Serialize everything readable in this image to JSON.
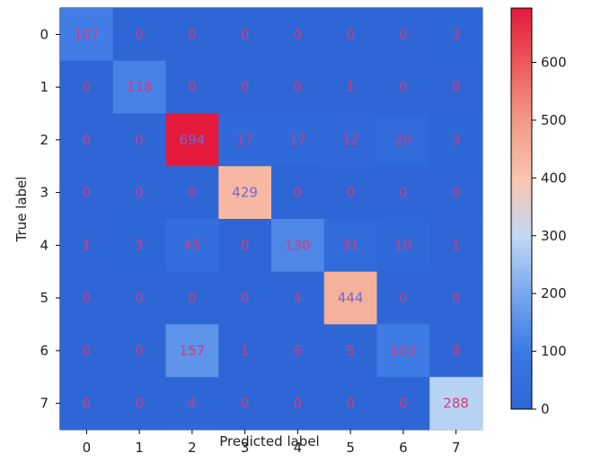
{
  "chart_data": {
    "type": "heatmap",
    "title": "",
    "xlabel": "Predicted label",
    "ylabel": "True label",
    "x_categories": [
      "0",
      "1",
      "2",
      "3",
      "4",
      "5",
      "6",
      "7"
    ],
    "y_categories": [
      "0",
      "1",
      "2",
      "3",
      "4",
      "5",
      "6",
      "7"
    ],
    "values": [
      [
        107,
        0,
        0,
        0,
        0,
        0,
        0,
        3
      ],
      [
        0,
        118,
        0,
        0,
        0,
        1,
        0,
        0
      ],
      [
        0,
        0,
        694,
        17,
        17,
        12,
        20,
        3
      ],
      [
        0,
        0,
        0,
        429,
        0,
        0,
        0,
        0
      ],
      [
        1,
        3,
        45,
        0,
        130,
        31,
        10,
        1
      ],
      [
        0,
        0,
        0,
        0,
        4,
        444,
        0,
        0
      ],
      [
        0,
        0,
        157,
        1,
        6,
        5,
        103,
        8
      ],
      [
        0,
        0,
        4,
        0,
        0,
        0,
        0,
        288
      ]
    ],
    "colorbar": {
      "range": [
        0,
        694
      ],
      "ticks": [
        0,
        100,
        200,
        300,
        400,
        500,
        600
      ],
      "tick_labels": [
        "0",
        "100",
        "200",
        "300",
        "400",
        "500",
        "600"
      ],
      "colormap": "coolwarm"
    },
    "cell_text_color": "#d53a7e",
    "cell_text_color_dark": "#6d6ad8"
  }
}
